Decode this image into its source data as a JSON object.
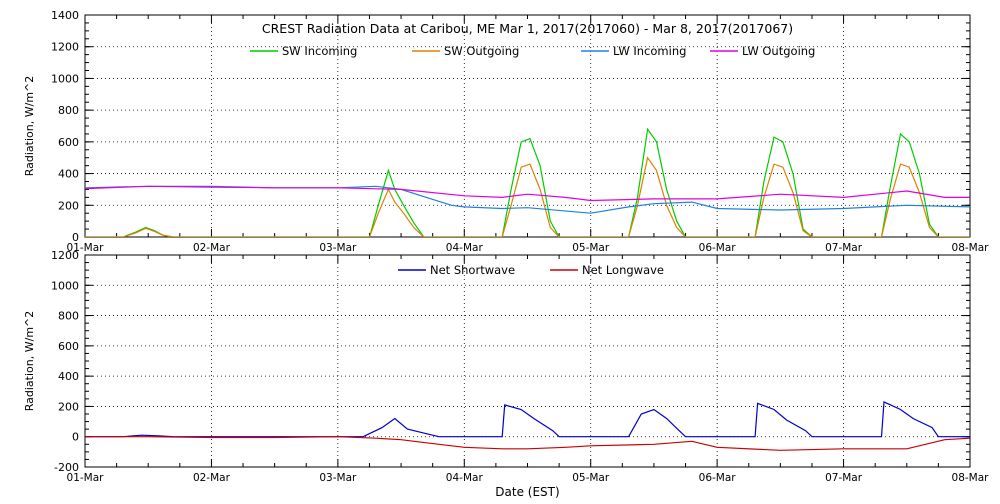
{
  "chart_data": [
    {
      "type": "line",
      "title": "CREST Radiation Data at Caribou, ME   Mar  1, 2017(2017060) - Mar  8, 2017(2017067)",
      "xlabel": "",
      "ylabel": "Radiation, W/m^2",
      "xlim": [
        0,
        7
      ],
      "ylim": [
        0,
        1400
      ],
      "yticks": [
        0,
        200,
        400,
        600,
        800,
        1000,
        1200,
        1400
      ],
      "x_tick_labels": [
        "01-Mar",
        "02-Mar",
        "03-Mar",
        "04-Mar",
        "05-Mar",
        "06-Mar",
        "07-Mar",
        "08-Mar"
      ],
      "grid": true,
      "legend_position": "top",
      "series": [
        {
          "name": "SW Incoming",
          "color": "#00cc00",
          "x": [
            0.0,
            0.3,
            0.4,
            0.48,
            0.55,
            0.62,
            0.7,
            1.0,
            2.25,
            2.32,
            2.4,
            2.45,
            2.52,
            2.6,
            2.68,
            2.75,
            3.0,
            3.3,
            3.37,
            3.45,
            3.52,
            3.6,
            3.68,
            3.75,
            4.0,
            4.3,
            4.37,
            4.45,
            4.52,
            4.6,
            4.68,
            4.75,
            5.0,
            5.3,
            5.37,
            5.45,
            5.52,
            5.6,
            5.68,
            5.75,
            6.0,
            6.3,
            6.37,
            6.45,
            6.52,
            6.6,
            6.68,
            6.75,
            7.0
          ],
          "y": [
            0,
            0,
            30,
            60,
            40,
            10,
            0,
            0,
            0,
            200,
            420,
            300,
            200,
            90,
            0,
            0,
            0,
            0,
            300,
            600,
            620,
            450,
            100,
            0,
            0,
            0,
            250,
            680,
            600,
            300,
            100,
            0,
            0,
            0,
            350,
            630,
            600,
            400,
            50,
            0,
            0,
            0,
            320,
            650,
            600,
            400,
            80,
            0,
            0
          ]
        },
        {
          "name": "SW Outgoing",
          "color": "#e08000",
          "x": [
            0.0,
            0.3,
            0.4,
            0.48,
            0.55,
            0.62,
            0.7,
            1.0,
            2.25,
            2.32,
            2.4,
            2.45,
            2.52,
            2.6,
            2.68,
            2.75,
            3.0,
            3.3,
            3.37,
            3.45,
            3.52,
            3.6,
            3.68,
            3.75,
            4.0,
            4.3,
            4.37,
            4.45,
            4.52,
            4.6,
            4.68,
            4.75,
            5.0,
            5.3,
            5.37,
            5.45,
            5.52,
            5.6,
            5.68,
            5.75,
            6.0,
            6.3,
            6.37,
            6.45,
            6.52,
            6.6,
            6.68,
            6.75,
            7.0
          ],
          "y": [
            0,
            0,
            25,
            55,
            35,
            10,
            0,
            0,
            0,
            150,
            300,
            220,
            150,
            60,
            0,
            0,
            0,
            0,
            200,
            440,
            460,
            300,
            60,
            0,
            0,
            0,
            200,
            500,
            420,
            200,
            60,
            0,
            0,
            0,
            250,
            460,
            440,
            280,
            40,
            0,
            0,
            0,
            240,
            460,
            440,
            280,
            60,
            0,
            0
          ]
        },
        {
          "name": "LW Incoming",
          "color": "#2080e0",
          "x": [
            0.0,
            0.5,
            1.0,
            1.5,
            2.0,
            2.3,
            2.5,
            2.7,
            2.9,
            3.0,
            3.3,
            3.5,
            4.0,
            4.3,
            4.5,
            4.8,
            5.0,
            5.5,
            6.0,
            6.5,
            7.0
          ],
          "y": [
            310,
            320,
            320,
            310,
            310,
            320,
            300,
            250,
            200,
            190,
            180,
            185,
            150,
            190,
            210,
            220,
            180,
            170,
            180,
            200,
            190
          ]
        },
        {
          "name": "LW Outgoing",
          "color": "#e000e0",
          "x": [
            0.0,
            0.5,
            1.0,
            1.5,
            2.0,
            2.5,
            3.0,
            3.3,
            3.5,
            3.8,
            4.0,
            4.5,
            5.0,
            5.5,
            6.0,
            6.5,
            6.8,
            7.0
          ],
          "y": [
            305,
            320,
            315,
            310,
            310,
            300,
            260,
            250,
            270,
            250,
            230,
            240,
            240,
            270,
            250,
            290,
            250,
            250
          ]
        }
      ]
    },
    {
      "type": "line",
      "title": "",
      "xlabel": "Date (EST)",
      "ylabel": "Radiation, W/m^2",
      "xlim": [
        0,
        7
      ],
      "ylim": [
        -200,
        1200
      ],
      "yticks": [
        -200,
        0,
        200,
        400,
        600,
        800,
        1000,
        1200
      ],
      "x_tick_labels": [
        "01-Mar",
        "02-Mar",
        "03-Mar",
        "04-Mar",
        "05-Mar",
        "06-Mar",
        "07-Mar",
        "08-Mar"
      ],
      "grid": true,
      "legend_position": "top",
      "series": [
        {
          "name": "Net Shortwave",
          "color": "#0000cc",
          "x": [
            0.0,
            0.3,
            0.45,
            0.6,
            0.7,
            2.2,
            2.35,
            2.45,
            2.55,
            2.7,
            2.8,
            3.3,
            3.32,
            3.45,
            3.55,
            3.7,
            3.75,
            4.3,
            4.4,
            4.5,
            4.6,
            4.7,
            4.75,
            5.3,
            5.32,
            5.45,
            5.55,
            5.7,
            5.75,
            6.3,
            6.32,
            6.45,
            6.55,
            6.7,
            6.75,
            7.0
          ],
          "y": [
            0,
            0,
            10,
            5,
            0,
            0,
            60,
            120,
            50,
            20,
            0,
            0,
            210,
            180,
            120,
            40,
            0,
            0,
            150,
            180,
            120,
            40,
            0,
            0,
            220,
            180,
            110,
            40,
            0,
            0,
            230,
            180,
            120,
            60,
            0,
            0
          ]
        },
        {
          "name": "Net Longwave",
          "color": "#cc0000",
          "x": [
            0.0,
            0.5,
            1.0,
            1.5,
            2.0,
            2.3,
            2.5,
            2.7,
            2.9,
            3.0,
            3.3,
            3.5,
            3.8,
            4.0,
            4.5,
            4.8,
            5.0,
            5.5,
            6.0,
            6.5,
            6.8,
            7.0
          ],
          "y": [
            0,
            0,
            -5,
            -5,
            0,
            -10,
            -20,
            -40,
            -60,
            -70,
            -80,
            -80,
            -70,
            -60,
            -50,
            -30,
            -70,
            -90,
            -80,
            -80,
            -20,
            -10
          ]
        }
      ]
    }
  ]
}
